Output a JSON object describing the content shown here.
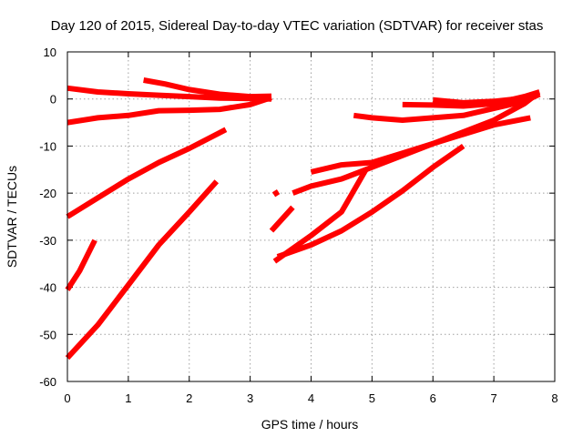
{
  "chart_data": {
    "type": "line",
    "title": "Day 120 of 2015, Sidereal Day-to-day VTEC variation (SDTVAR) for receiver stas",
    "xlabel": "GPS time / hours",
    "ylabel": "SDTVAR / TECUs",
    "xlim": [
      0,
      8
    ],
    "ylim": [
      -60,
      10
    ],
    "xticks": [
      "0",
      "1",
      "2",
      "3",
      "4",
      "5",
      "6",
      "7",
      "8"
    ],
    "yticks": [
      "-60",
      "-50",
      "-40",
      "-30",
      "-20",
      "-10",
      "0",
      "10"
    ],
    "grid": true,
    "color": "#ff0000",
    "series": [
      {
        "points": [
          [
            0.0,
            2.3
          ],
          [
            0.5,
            1.5
          ],
          [
            1.0,
            1.1
          ],
          [
            1.5,
            0.8
          ],
          [
            2.0,
            0.5
          ],
          [
            2.5,
            0.2
          ],
          [
            3.0,
            0.1
          ],
          [
            3.35,
            0.0
          ]
        ]
      },
      {
        "points": [
          [
            1.25,
            4.0
          ],
          [
            1.6,
            3.2
          ],
          [
            2.0,
            2.0
          ],
          [
            2.5,
            1.0
          ],
          [
            3.0,
            0.5
          ],
          [
            3.35,
            0.6
          ]
        ]
      },
      {
        "points": [
          [
            0.0,
            -5.0
          ],
          [
            0.5,
            -4.0
          ],
          [
            1.0,
            -3.5
          ],
          [
            1.5,
            -2.5
          ],
          [
            2.0,
            -2.4
          ],
          [
            2.5,
            -2.2
          ],
          [
            3.0,
            -1.2
          ],
          [
            3.35,
            0.3
          ]
        ]
      },
      {
        "points": [
          [
            0.0,
            -25.0
          ],
          [
            0.5,
            -21.0
          ],
          [
            1.0,
            -17.0
          ],
          [
            1.5,
            -13.5
          ],
          [
            2.0,
            -10.5
          ],
          [
            2.6,
            -6.5
          ]
        ]
      },
      {
        "points": [
          [
            0.0,
            -40.5
          ],
          [
            0.2,
            -36.5
          ],
          [
            0.45,
            -30.0
          ]
        ]
      },
      {
        "points": [
          [
            0.0,
            -55.0
          ],
          [
            0.5,
            -48.0
          ],
          [
            1.0,
            -39.5
          ],
          [
            1.5,
            -31.0
          ],
          [
            2.0,
            -24.0
          ],
          [
            2.45,
            -17.5
          ]
        ]
      },
      {
        "points": [
          [
            3.4,
            -19.5
          ],
          [
            3.45,
            -20.5
          ]
        ]
      },
      {
        "points": [
          [
            3.35,
            -28.0
          ],
          [
            3.7,
            -23.0
          ]
        ]
      },
      {
        "points": [
          [
            3.7,
            -20.0
          ],
          [
            4.0,
            -18.5
          ],
          [
            4.5,
            -17.0
          ],
          [
            5.0,
            -14.5
          ],
          [
            5.5,
            -12.0
          ],
          [
            6.0,
            -9.5
          ],
          [
            6.5,
            -7.5
          ],
          [
            7.0,
            -5.5
          ],
          [
            7.6,
            -4.0
          ]
        ]
      },
      {
        "points": [
          [
            4.0,
            -15.5
          ],
          [
            4.5,
            -14.0
          ],
          [
            5.0,
            -13.5
          ],
          [
            5.5,
            -11.5
          ],
          [
            6.0,
            -9.5
          ],
          [
            6.5,
            -7.0
          ],
          [
            7.0,
            -4.5
          ],
          [
            7.5,
            -1.0
          ],
          [
            7.65,
            0.5
          ]
        ]
      },
      {
        "points": [
          [
            3.4,
            -34.5
          ],
          [
            4.0,
            -29.0
          ],
          [
            4.5,
            -24.0
          ],
          [
            4.9,
            -15.0
          ]
        ]
      },
      {
        "points": [
          [
            3.45,
            -33.5
          ],
          [
            4.0,
            -31.0
          ],
          [
            4.5,
            -28.0
          ],
          [
            5.0,
            -24.0
          ],
          [
            5.5,
            -19.5
          ],
          [
            6.0,
            -14.5
          ],
          [
            6.5,
            -10.0
          ]
        ]
      },
      {
        "points": [
          [
            4.7,
            -3.5
          ],
          [
            5.0,
            -4.0
          ],
          [
            5.5,
            -4.5
          ],
          [
            6.0,
            -4.0
          ],
          [
            6.5,
            -3.5
          ],
          [
            7.0,
            -2.0
          ],
          [
            7.5,
            -0.5
          ],
          [
            7.75,
            1.0
          ]
        ]
      },
      {
        "points": [
          [
            5.5,
            -1.2
          ],
          [
            6.0,
            -1.3
          ],
          [
            6.5,
            -1.5
          ],
          [
            7.0,
            -1.0
          ],
          [
            7.5,
            0.5
          ],
          [
            7.75,
            1.5
          ]
        ]
      },
      {
        "points": [
          [
            6.0,
            -0.2
          ],
          [
            6.5,
            -0.8
          ],
          [
            7.0,
            -0.5
          ],
          [
            7.5,
            0.2
          ],
          [
            7.7,
            0.8
          ]
        ]
      }
    ]
  }
}
